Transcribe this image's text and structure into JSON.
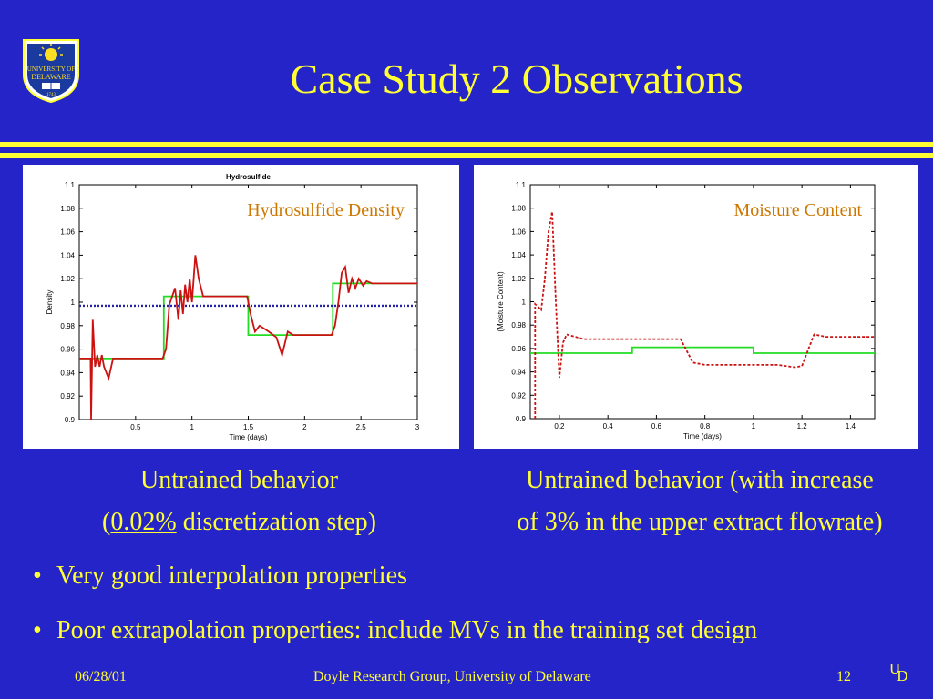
{
  "slide": {
    "title": "Case Study 2 Observations",
    "logo": {
      "icon": "university-of-delaware-logo-icon",
      "line1": "UNIVERSITY OF",
      "line2": "DELAWARE",
      "year": "1743"
    },
    "caption_left": {
      "line1": "Untrained behavior",
      "line2_open": "(",
      "line2_underlined": "0.02%",
      "line2_rest": " discretization step)"
    },
    "caption_right": {
      "line1": "Untrained behavior (with increase",
      "line2": "of 3% in the upper extract flowrate)"
    },
    "bullets": [
      {
        "bullet": "•",
        "text": "Very good interpolation properties"
      },
      {
        "bullet": "•",
        "text": "Poor extrapolation properties: include MVs in the training set design"
      }
    ],
    "footer": {
      "date": "06/28/01",
      "center": "Doyle Research Group, University of Delaware",
      "page": "12",
      "mark_u": "U",
      "mark_d": "D"
    },
    "colors": {
      "background": "#2424c9",
      "text": "#ffff33",
      "green": "#22dd22",
      "red": "#cc1111",
      "blue": "#2222aa"
    }
  },
  "chart_data": [
    {
      "type": "line",
      "title": "Hydrosulfide",
      "annotation": "Hydrosulfide Density",
      "xlabel": "Time (days)",
      "ylabel": "Density",
      "xlim": [
        0,
        3
      ],
      "ylim": [
        0.9,
        1.1
      ],
      "xticks": [
        "0.5",
        "1",
        "1.5",
        "2",
        "2.5",
        "3"
      ],
      "xtick_values": [
        0.5,
        1,
        1.5,
        2,
        2.5,
        3
      ],
      "yticks": [
        "0.9",
        "0.92",
        "0.94",
        "0.96",
        "0.98",
        "1",
        "1.02",
        "1.04",
        "1.06",
        "1.08",
        "1.1"
      ],
      "ytick_values": [
        0.9,
        0.92,
        0.94,
        0.96,
        0.98,
        1,
        1.02,
        1.04,
        1.06,
        1.08,
        1.1
      ],
      "series": [
        {
          "style": "step-green",
          "color": "#22dd22",
          "x": [
            0,
            0.75,
            0.75,
            1.5,
            1.5,
            2.25,
            2.25,
            3
          ],
          "y": [
            0.952,
            0.952,
            1.005,
            1.005,
            0.972,
            0.972,
            1.016,
            1.016
          ]
        },
        {
          "style": "dotted-blue",
          "color": "#2222aa",
          "x": [
            0,
            3
          ],
          "y": [
            0.997,
            0.997
          ]
        },
        {
          "style": "solid-red",
          "color": "#cc1111",
          "x": [
            0,
            0.1,
            0.105,
            0.12,
            0.14,
            0.16,
            0.18,
            0.2,
            0.22,
            0.26,
            0.3,
            0.74,
            0.77,
            0.8,
            0.85,
            0.88,
            0.9,
            0.92,
            0.94,
            0.96,
            0.98,
            1.0,
            1.03,
            1.06,
            1.1,
            1.15,
            1.2,
            1.49,
            1.52,
            1.56,
            1.6,
            1.68,
            1.75,
            1.8,
            1.85,
            1.9,
            2.0,
            2.24,
            2.27,
            2.3,
            2.33,
            2.36,
            2.39,
            2.42,
            2.45,
            2.48,
            2.52,
            2.55,
            2.6,
            3.0
          ],
          "y": [
            0.952,
            0.952,
            0.9,
            0.985,
            0.945,
            0.955,
            0.945,
            0.955,
            0.945,
            0.935,
            0.952,
            0.952,
            0.96,
            0.998,
            1.012,
            0.985,
            1.01,
            0.99,
            1.015,
            1.0,
            1.02,
            1.0,
            1.04,
            1.02,
            1.005,
            1.005,
            1.005,
            1.005,
            0.99,
            0.975,
            0.98,
            0.975,
            0.97,
            0.955,
            0.975,
            0.972,
            0.972,
            0.972,
            0.98,
            1.0,
            1.025,
            1.03,
            1.008,
            1.02,
            1.012,
            1.02,
            1.014,
            1.018,
            1.016,
            1.016
          ]
        }
      ]
    },
    {
      "type": "line",
      "title": "",
      "annotation": "Moisture Content",
      "xlabel": "Time (days)",
      "ylabel": "(Moisture Content)",
      "xlim": [
        0.08,
        1.5
      ],
      "ylim": [
        0.9,
        1.1
      ],
      "xticks": [
        "0.2",
        "0.4",
        "0.6",
        "0.8",
        "1",
        "1.2",
        "1.4"
      ],
      "xtick_values": [
        0.2,
        0.4,
        0.6,
        0.8,
        1,
        1.2,
        1.4
      ],
      "yticks": [
        "0.9",
        "0.92",
        "0.94",
        "0.96",
        "0.98",
        "1",
        "1.02",
        "1.04",
        "1.06",
        "1.08",
        "1.1"
      ],
      "ytick_values": [
        0.9,
        0.92,
        0.94,
        0.96,
        0.98,
        1,
        1.02,
        1.04,
        1.06,
        1.08,
        1.1
      ],
      "series": [
        {
          "style": "step-green",
          "color": "#22dd22",
          "x": [
            0.08,
            0.5,
            0.5,
            1.0,
            1.0,
            1.5
          ],
          "y": [
            0.956,
            0.956,
            0.961,
            0.961,
            0.956,
            0.956
          ]
        },
        {
          "style": "dashed-red",
          "color": "#cc1111",
          "x": [
            0.1,
            0.1,
            0.11,
            0.125,
            0.14,
            0.155,
            0.17,
            0.185,
            0.2,
            0.215,
            0.23,
            0.3,
            0.5,
            0.6,
            0.7,
            0.75,
            0.8,
            1.0,
            1.1,
            1.17,
            1.2,
            1.25,
            1.3,
            1.5
          ],
          "y": [
            0.9,
            0.998,
            0.996,
            0.993,
            1.02,
            1.06,
            1.077,
            1.0,
            0.935,
            0.965,
            0.972,
            0.968,
            0.968,
            0.968,
            0.968,
            0.948,
            0.946,
            0.946,
            0.946,
            0.944,
            0.945,
            0.972,
            0.97,
            0.97
          ]
        }
      ]
    }
  ]
}
